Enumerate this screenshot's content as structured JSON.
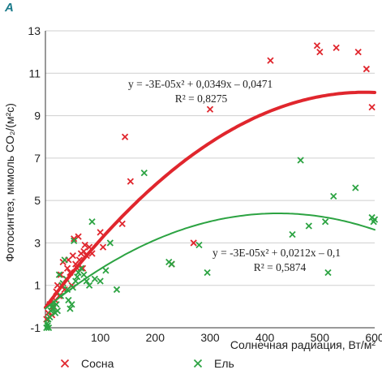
{
  "chart_data": {
    "type": "scatter",
    "panel_label": "A",
    "xlabel": "Солнечная радиация, Вт/м²",
    "ylabel": "Фотосинтез, мкмоль CO₂/(м²с)",
    "xlim": [
      0,
      600
    ],
    "ylim": [
      -1,
      13
    ],
    "xticks": [
      "100",
      "200",
      "300",
      "400",
      "500",
      "600"
    ],
    "yticks": [
      "-1",
      "1",
      "3",
      "5",
      "7",
      "9",
      "11",
      "13"
    ],
    "grid": "horizontal",
    "legend_position": "bottom",
    "series": [
      {
        "name": "Сосна",
        "color": "#e0262d",
        "marker": "x",
        "points": [
          [
            2,
            -0.6
          ],
          [
            5,
            -0.3
          ],
          [
            8,
            0.1
          ],
          [
            12,
            -0.4
          ],
          [
            15,
            0.0
          ],
          [
            18,
            0.3
          ],
          [
            20,
            0.7
          ],
          [
            22,
            1.0
          ],
          [
            25,
            0.5
          ],
          [
            28,
            1.5
          ],
          [
            30,
            1.0
          ],
          [
            32,
            2.1
          ],
          [
            35,
            0.8
          ],
          [
            38,
            1.3
          ],
          [
            40,
            1.8
          ],
          [
            42,
            2.2
          ],
          [
            45,
            1.6
          ],
          [
            48,
            1.0
          ],
          [
            50,
            2.4
          ],
          [
            52,
            3.2
          ],
          [
            55,
            2.0
          ],
          [
            58,
            1.8
          ],
          [
            60,
            3.3
          ],
          [
            62,
            2.2
          ],
          [
            65,
            2.5
          ],
          [
            68,
            1.8
          ],
          [
            70,
            2.6
          ],
          [
            72,
            2.9
          ],
          [
            75,
            2.4
          ],
          [
            80,
            2.8
          ],
          [
            85,
            2.5
          ],
          [
            100,
            3.5
          ],
          [
            105,
            2.8
          ],
          [
            140,
            3.9
          ],
          [
            145,
            8.0
          ],
          [
            155,
            5.9
          ],
          [
            230,
            2.0
          ],
          [
            270,
            3.0
          ],
          [
            300,
            9.3
          ],
          [
            410,
            11.6
          ],
          [
            495,
            12.3
          ],
          [
            500,
            12.0
          ],
          [
            530,
            12.2
          ],
          [
            570,
            12.0
          ],
          [
            585,
            11.2
          ],
          [
            595,
            9.4
          ]
        ]
      },
      {
        "name": "Ель",
        "color": "#2ca342",
        "marker": "x",
        "points": [
          [
            2,
            -1.0
          ],
          [
            3,
            -0.8
          ],
          [
            4,
            -0.9
          ],
          [
            5,
            -0.6
          ],
          [
            6,
            -1.0
          ],
          [
            8,
            -0.5
          ],
          [
            10,
            -0.2
          ],
          [
            12,
            0.0
          ],
          [
            14,
            -0.1
          ],
          [
            16,
            0.2
          ],
          [
            18,
            -0.3
          ],
          [
            20,
            0.1
          ],
          [
            22,
            -0.2
          ],
          [
            25,
            1.5
          ],
          [
            28,
            0.5
          ],
          [
            30,
            1.0
          ],
          [
            32,
            1.1
          ],
          [
            35,
            2.2
          ],
          [
            38,
            1.3
          ],
          [
            40,
            0.8
          ],
          [
            42,
            0.3
          ],
          [
            45,
            -0.1
          ],
          [
            48,
            0.1
          ],
          [
            50,
            0.9
          ],
          [
            52,
            3.1
          ],
          [
            55,
            1.2
          ],
          [
            58,
            1.4
          ],
          [
            60,
            1.6
          ],
          [
            65,
            1.8
          ],
          [
            70,
            1.5
          ],
          [
            75,
            1.2
          ],
          [
            80,
            1.0
          ],
          [
            85,
            4.0
          ],
          [
            90,
            1.3
          ],
          [
            100,
            1.2
          ],
          [
            110,
            1.7
          ],
          [
            118,
            3.0
          ],
          [
            130,
            0.8
          ],
          [
            180,
            6.3
          ],
          [
            225,
            2.1
          ],
          [
            230,
            2.0
          ],
          [
            280,
            2.9
          ],
          [
            295,
            1.6
          ],
          [
            450,
            3.4
          ],
          [
            465,
            6.9
          ],
          [
            480,
            3.8
          ],
          [
            510,
            4.0
          ],
          [
            515,
            1.6
          ],
          [
            525,
            5.2
          ],
          [
            565,
            5.6
          ],
          [
            595,
            4.2
          ],
          [
            598,
            4.0
          ],
          [
            600,
            4.1
          ]
        ]
      }
    ],
    "trendlines": [
      {
        "series": "Сосна",
        "color": "#e0262d",
        "equation": "y = -3E-05x² + 0,0349x – 0,0471",
        "r2": "R² = 0,8275",
        "a": -3e-05,
        "b": 0.0349,
        "c": -0.0471,
        "x_range": [
          0,
          600
        ]
      },
      {
        "series": "Ель",
        "color": "#2ca342",
        "equation": "y = -3E-05x² + 0,0212x – 0,1",
        "r2": "R² = 0,5874",
        "a": -2.5e-05,
        "b": 0.0212,
        "c": -0.1,
        "x_range": [
          0,
          600
        ]
      }
    ]
  }
}
